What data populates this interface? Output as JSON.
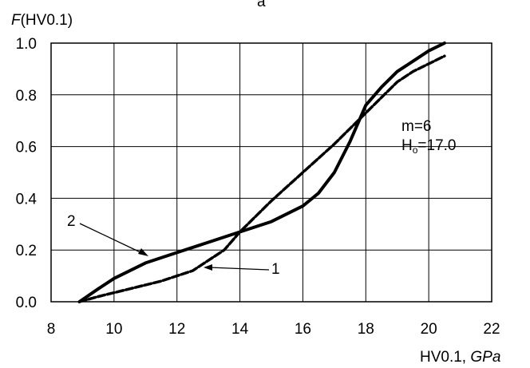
{
  "panel_label": "a",
  "chart_data": {
    "type": "line",
    "ylabel_prefix": "F",
    "ylabel_suffix": "(HV0.1)",
    "xlabel_prefix": "HV0.1, ",
    "xlabel_unit": "GPa",
    "xlim": [
      8,
      22
    ],
    "ylim": [
      0,
      1.0
    ],
    "xticks": [
      "8",
      "10",
      "12",
      "14",
      "16",
      "18",
      "20",
      "22"
    ],
    "yticks": [
      "0.0",
      "0.2",
      "0.4",
      "0.6",
      "0.8",
      "1.0"
    ],
    "grid": true,
    "annotations": {
      "m_text": "m=6",
      "h_prefix": "H",
      "h_sub": "o",
      "h_value": "=17.0",
      "label1": "1",
      "label2": "2"
    },
    "series": [
      {
        "style": "dashed",
        "x": [
          8.9,
          9.5,
          10.5,
          11.5,
          12.5,
          13.5,
          14.0,
          15.0,
          16.0,
          17.0,
          18.0,
          18.5,
          19.0,
          19.5,
          20.0,
          20.5
        ],
        "y": [
          0.0,
          0.02,
          0.05,
          0.08,
          0.12,
          0.2,
          0.27,
          0.39,
          0.5,
          0.61,
          0.73,
          0.79,
          0.85,
          0.89,
          0.92,
          0.95
        ]
      },
      {
        "style": "solid",
        "x": [
          8.9,
          9.5,
          10.0,
          11.0,
          12.0,
          13.0,
          14.0,
          15.0,
          16.0,
          16.5,
          17.0,
          17.5,
          18.0,
          18.5,
          19.0,
          19.5,
          20.0,
          20.5
        ],
        "y": [
          0.0,
          0.05,
          0.09,
          0.15,
          0.19,
          0.23,
          0.27,
          0.31,
          0.37,
          0.42,
          0.5,
          0.62,
          0.76,
          0.83,
          0.89,
          0.93,
          0.97,
          1.0
        ]
      }
    ]
  }
}
